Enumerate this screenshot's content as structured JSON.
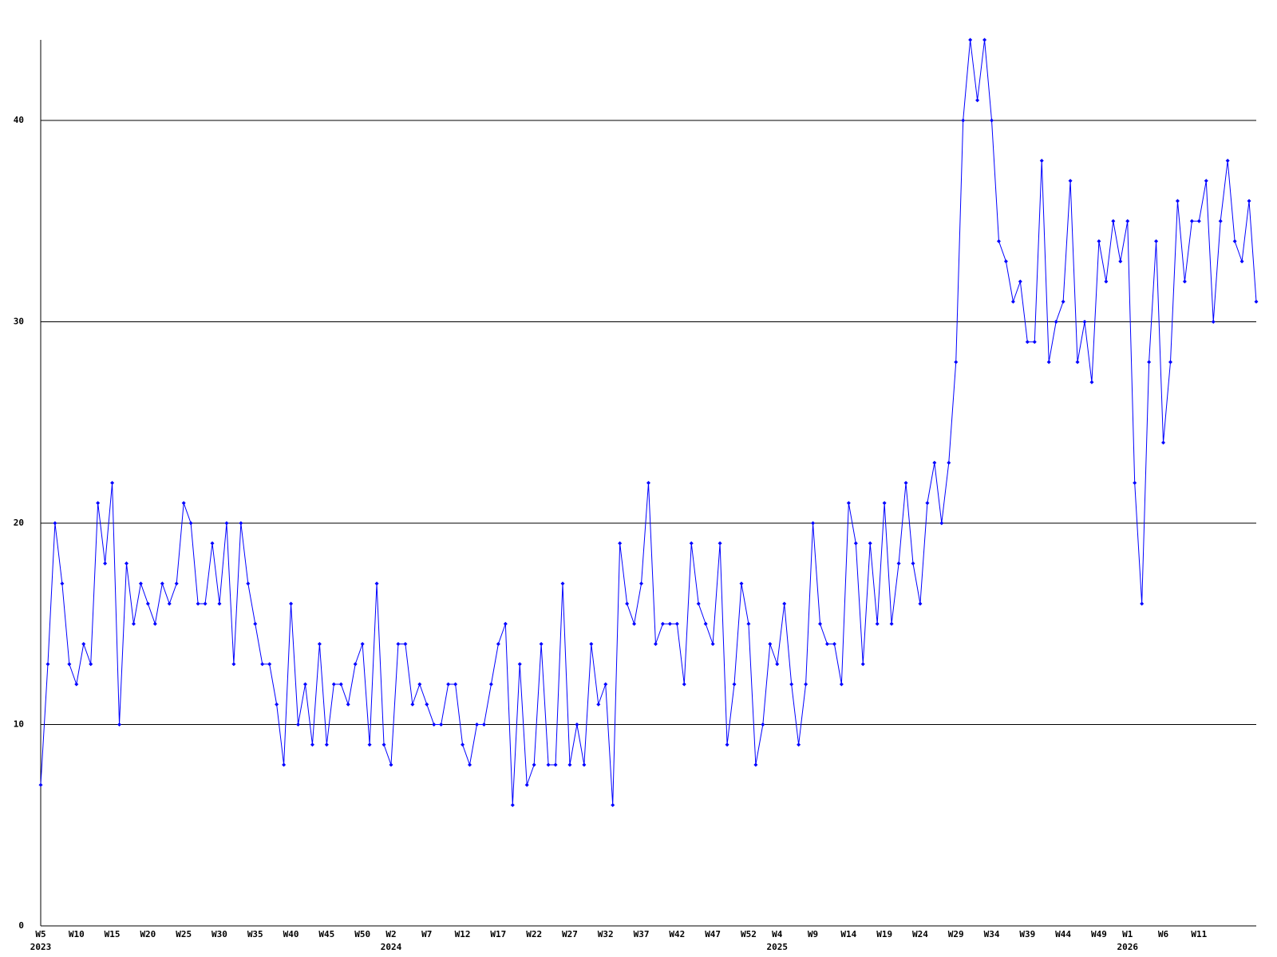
{
  "chart_data": {
    "type": "line",
    "categories": [
      "W5",
      null,
      null,
      null,
      null,
      "W10",
      null,
      null,
      null,
      null,
      "W15",
      null,
      null,
      null,
      null,
      "W20",
      null,
      null,
      null,
      null,
      "W25",
      null,
      null,
      null,
      null,
      "W30",
      null,
      null,
      null,
      null,
      "W35",
      null,
      null,
      null,
      null,
      "W40",
      null,
      null,
      null,
      null,
      "W45",
      null,
      null,
      null,
      null,
      "W50",
      null,
      null,
      null,
      "W2",
      null,
      null,
      null,
      null,
      "W7",
      null,
      null,
      null,
      null,
      "W12",
      null,
      null,
      null,
      null,
      "W17",
      null,
      null,
      null,
      null,
      "W22",
      null,
      null,
      null,
      null,
      "W27",
      null,
      null,
      null,
      null,
      "W32",
      null,
      null,
      null,
      null,
      "W37",
      null,
      null,
      null,
      null,
      "W42",
      null,
      null,
      null,
      null,
      "W47",
      null,
      null,
      null,
      null,
      "W52",
      null,
      null,
      null,
      "W4",
      null,
      null,
      null,
      null,
      "W9",
      null,
      null,
      null,
      null,
      "W14",
      null,
      null,
      null,
      null,
      "W19",
      null,
      null,
      null,
      null,
      "W24",
      null,
      null,
      null,
      null,
      "W29",
      null,
      null,
      null,
      null,
      "W34",
      null,
      null,
      null,
      null,
      "W39",
      null,
      null,
      null,
      null,
      "W44",
      null,
      null,
      null,
      null,
      "W49",
      null,
      null,
      null,
      "W1",
      null,
      null,
      null,
      null,
      "W6",
      null,
      null,
      null,
      null,
      "W11",
      null,
      null,
      null,
      null,
      null,
      null,
      null,
      null
    ],
    "category_years": [
      "2023",
      null,
      null,
      null,
      null,
      null,
      null,
      null,
      null,
      null,
      null,
      null,
      null,
      null,
      null,
      null,
      null,
      null,
      null,
      null,
      null,
      null,
      null,
      null,
      null,
      null,
      null,
      null,
      null,
      null,
      null,
      null,
      null,
      null,
      null,
      null,
      null,
      null,
      null,
      null,
      null,
      null,
      null,
      null,
      null,
      null,
      null,
      null,
      null,
      "2024",
      null,
      null,
      null,
      null,
      null,
      null,
      null,
      null,
      null,
      null,
      null,
      null,
      null,
      null,
      null,
      null,
      null,
      null,
      null,
      null,
      null,
      null,
      null,
      null,
      null,
      null,
      null,
      null,
      null,
      null,
      null,
      null,
      null,
      null,
      null,
      null,
      null,
      null,
      null,
      null,
      null,
      null,
      null,
      null,
      null,
      null,
      null,
      null,
      null,
      null,
      null,
      null,
      null,
      "2025",
      null,
      null,
      null,
      null,
      null,
      null,
      null,
      null,
      null,
      null,
      null,
      null,
      null,
      null,
      null,
      null,
      null,
      null,
      null,
      null,
      null,
      null,
      null,
      null,
      null,
      null,
      null,
      null,
      null,
      null,
      null,
      null,
      null,
      null,
      null,
      null,
      null,
      null,
      null,
      null,
      null,
      null,
      null,
      null,
      null,
      null,
      null,
      null,
      "2026",
      null,
      null,
      null,
      null,
      null,
      null,
      null,
      null,
      null,
      null,
      null,
      null,
      null,
      null,
      null,
      null,
      null,
      null
    ],
    "series": [
      {
        "color": "#0000ff",
        "values": [
          7,
          13,
          20,
          17,
          13,
          12,
          14,
          13,
          21,
          18,
          22,
          10,
          18,
          15,
          17,
          16,
          15,
          17,
          16,
          17,
          21,
          20,
          16,
          16,
          19,
          16,
          20,
          13,
          20,
          17,
          15,
          13,
          13,
          11,
          8,
          16,
          10,
          12,
          9,
          14,
          9,
          12,
          12,
          11,
          13,
          14,
          9,
          17,
          9,
          8,
          14,
          14,
          11,
          12,
          11,
          10,
          10,
          12,
          12,
          9,
          8,
          10,
          10,
          12,
          14,
          15,
          6,
          13,
          7,
          8,
          14,
          8,
          8,
          17,
          8,
          10,
          8,
          14,
          11,
          12,
          6,
          19,
          16,
          15,
          17,
          22,
          14,
          15,
          15,
          15,
          12,
          19,
          16,
          15,
          14,
          19,
          9,
          12,
          17,
          15,
          8,
          10,
          14,
          13,
          16,
          12,
          9,
          12,
          20,
          15,
          14,
          14,
          12,
          21,
          19,
          13,
          19,
          15,
          21,
          15,
          18,
          22,
          18,
          16,
          21,
          23,
          20,
          23,
          28,
          40,
          44,
          41,
          44,
          40,
          34,
          33,
          31,
          32,
          29,
          29,
          38,
          28,
          30,
          31,
          37,
          28,
          30,
          27,
          34,
          32,
          35,
          33,
          35,
          22,
          16,
          28,
          34,
          24,
          28,
          36,
          32,
          35,
          35,
          37,
          30,
          35,
          38,
          34,
          33,
          36,
          31
        ]
      }
    ],
    "ylim": [
      0,
      44
    ],
    "yticks": [
      0,
      10,
      20,
      30,
      40
    ],
    "grid": true
  }
}
